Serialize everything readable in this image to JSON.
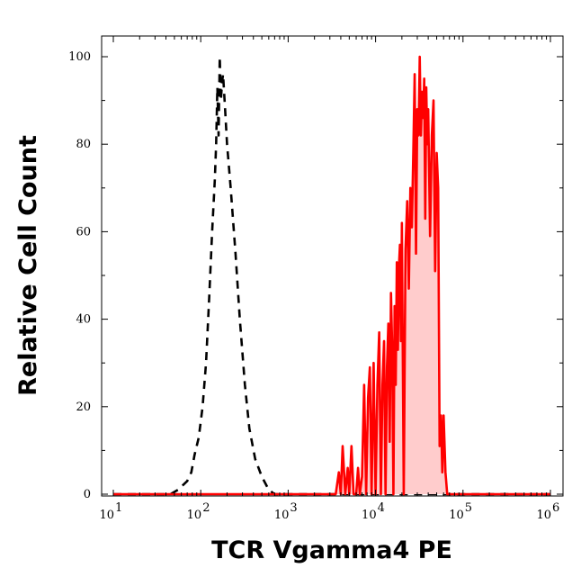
{
  "chart_data": {
    "type": "area",
    "title": "",
    "xlabel": "TCR Vgamma4 PE",
    "ylabel": "Relative Cell Count",
    "x_scale": "log",
    "xlim": [
      10,
      1000000
    ],
    "ylim": [
      0,
      100
    ],
    "x_ticks": [
      {
        "base": "10",
        "exp": "1"
      },
      {
        "base": "10",
        "exp": "2"
      },
      {
        "base": "10",
        "exp": "3"
      },
      {
        "base": "10",
        "exp": "4"
      },
      {
        "base": "10",
        "exp": "5"
      },
      {
        "base": "10",
        "exp": "6"
      }
    ],
    "y_ticks": [
      "0",
      "20",
      "40",
      "60",
      "80",
      "100"
    ],
    "grid": false,
    "series": [
      {
        "style": "dashed",
        "color": "#000000",
        "fill": "none",
        "x": [
          10,
          45,
          55,
          62,
          70,
          78,
          85,
          95,
          105,
          115,
          125,
          135,
          145,
          150,
          155,
          160,
          165,
          170,
          175,
          180,
          190,
          200,
          220,
          250,
          280,
          320,
          360,
          420,
          500,
          600,
          700,
          800,
          1000000
        ],
        "y": [
          0,
          0,
          1,
          2,
          3,
          5,
          9,
          13,
          20,
          30,
          45,
          60,
          72,
          80,
          93,
          82,
          100,
          90,
          94,
          96,
          88,
          80,
          70,
          55,
          40,
          25,
          15,
          8,
          4,
          1,
          0,
          0,
          0
        ]
      },
      {
        "style": "solid",
        "color": "#ff0000",
        "fill": "#ffcccc",
        "x": [
          10,
          3500,
          3800,
          4000,
          4200,
          4500,
          4800,
          5000,
          5300,
          5600,
          6000,
          6300,
          6600,
          7000,
          7400,
          7800,
          8200,
          8600,
          9000,
          9500,
          10000,
          10500,
          11000,
          11500,
          12000,
          12500,
          13000,
          13500,
          14000,
          14500,
          15000,
          15500,
          16000,
          16500,
          17000,
          17500,
          18000,
          18500,
          19000,
          19500,
          20000,
          21000,
          22000,
          23000,
          24000,
          25000,
          26000,
          27000,
          28000,
          29000,
          30000,
          31000,
          32000,
          33000,
          34000,
          35000,
          36000,
          37000,
          38000,
          39000,
          40000,
          42000,
          44000,
          46000,
          48000,
          50000,
          52000,
          54000,
          56000,
          58000,
          60000,
          63000,
          66000,
          70000,
          75000,
          80000,
          85000,
          90000,
          1000000
        ],
        "y": [
          0,
          0,
          5,
          0,
          11,
          0,
          6,
          0,
          11,
          0,
          0,
          6,
          0,
          4,
          25,
          0,
          22,
          29,
          0,
          30,
          0,
          25,
          37,
          0,
          25,
          35,
          0,
          29,
          39,
          12,
          46,
          33,
          0,
          43,
          25,
          53,
          33,
          52,
          57,
          35,
          62,
          0,
          56,
          67,
          47,
          70,
          61,
          78,
          96,
          55,
          88,
          82,
          100,
          82,
          92,
          86,
          95,
          63,
          93,
          80,
          88,
          59,
          82,
          90,
          51,
          78,
          70,
          11,
          18,
          5,
          18,
          5,
          0,
          0,
          0,
          0,
          0,
          0,
          0
        ]
      }
    ]
  }
}
